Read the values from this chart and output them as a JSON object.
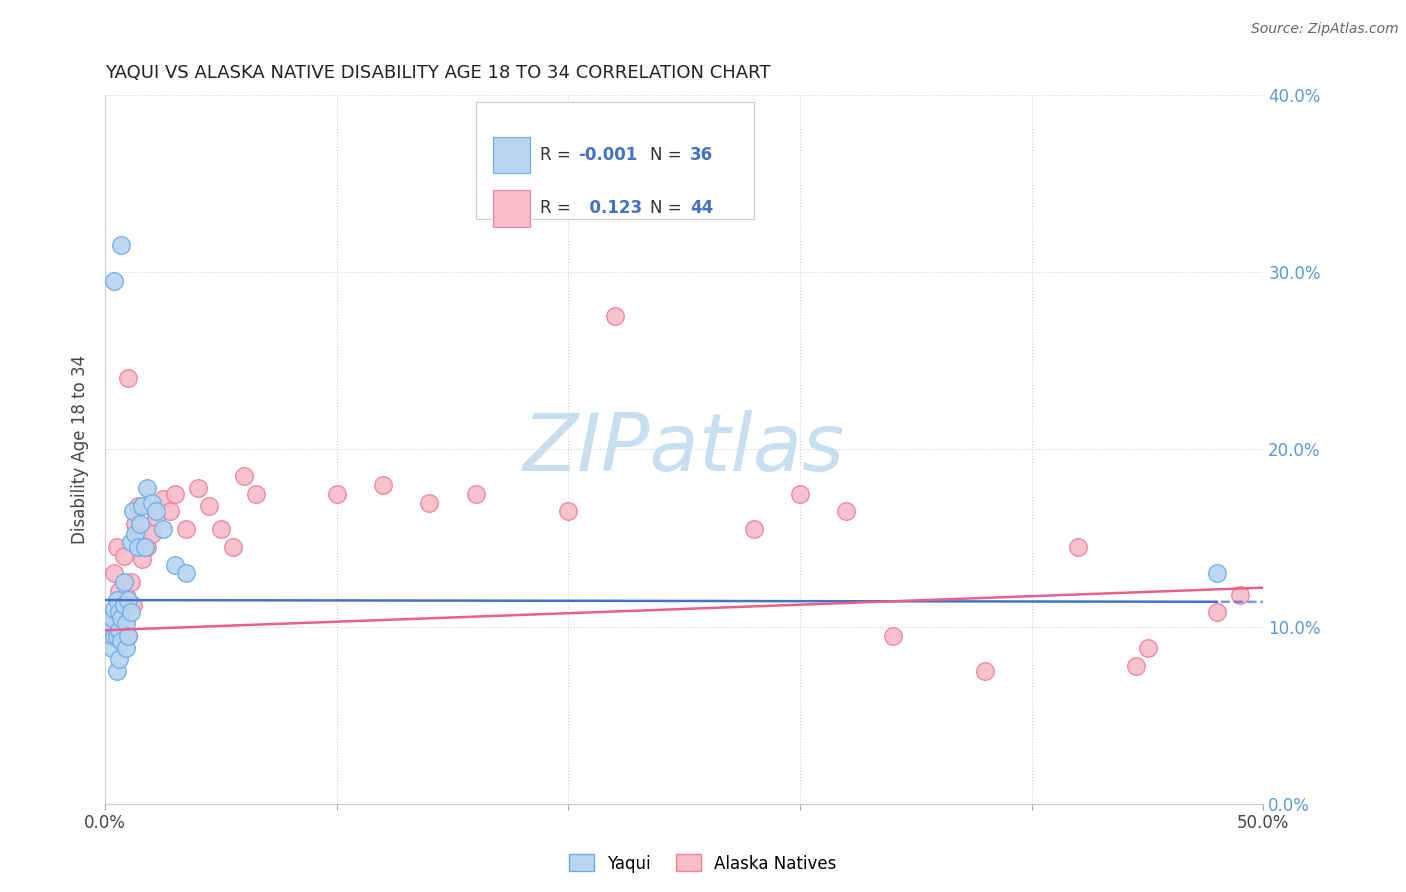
{
  "title": "YAQUI VS ALASKA NATIVE DISABILITY AGE 18 TO 34 CORRELATION CHART",
  "source": "Source: ZipAtlas.com",
  "ylabel": "Disability Age 18 to 34",
  "xlim": [
    0.0,
    0.5
  ],
  "ylim": [
    0.0,
    0.4
  ],
  "xticks": [
    0.0,
    0.1,
    0.2,
    0.3,
    0.4,
    0.5
  ],
  "yticks": [
    0.0,
    0.1,
    0.2,
    0.3,
    0.4
  ],
  "ytick_labels_right": [
    "0.0%",
    "10.0%",
    "20.0%",
    "30.0%",
    "40.0%"
  ],
  "xtick_labels": [
    "0.0%",
    "",
    "",
    "",
    "",
    "50.0%"
  ],
  "color_yaqui_fill": "#b8d4f0",
  "color_yaqui_edge": "#6aaee8",
  "color_alaska_fill": "#f7bccb",
  "color_alaska_edge": "#f080a0",
  "color_line_yaqui": "#4472c4",
  "color_line_alaska": "#e8608a",
  "watermark_color": "#c8dff0",
  "background_color": "#ffffff",
  "grid_color": "#d0d0d0",
  "yaqui_x": [
    0.002,
    0.003,
    0.003,
    0.004,
    0.004,
    0.005,
    0.005,
    0.005,
    0.006,
    0.006,
    0.006,
    0.007,
    0.007,
    0.008,
    0.008,
    0.009,
    0.009,
    0.01,
    0.01,
    0.011,
    0.011,
    0.012,
    0.013,
    0.014,
    0.015,
    0.016,
    0.017,
    0.018,
    0.02,
    0.022,
    0.025,
    0.03,
    0.035,
    0.004,
    0.007,
    0.48
  ],
  "yaqui_y": [
    0.1,
    0.088,
    0.105,
    0.095,
    0.11,
    0.075,
    0.095,
    0.115,
    0.082,
    0.098,
    0.108,
    0.092,
    0.105,
    0.112,
    0.125,
    0.088,
    0.102,
    0.095,
    0.115,
    0.108,
    0.148,
    0.165,
    0.152,
    0.145,
    0.158,
    0.168,
    0.145,
    0.178,
    0.17,
    0.165,
    0.155,
    0.135,
    0.13,
    0.295,
    0.315,
    0.13
  ],
  "alaska_x": [
    0.003,
    0.004,
    0.005,
    0.006,
    0.007,
    0.008,
    0.009,
    0.01,
    0.011,
    0.012,
    0.013,
    0.014,
    0.015,
    0.016,
    0.018,
    0.02,
    0.022,
    0.025,
    0.028,
    0.03,
    0.035,
    0.04,
    0.045,
    0.05,
    0.055,
    0.06,
    0.065,
    0.1,
    0.12,
    0.14,
    0.16,
    0.2,
    0.22,
    0.28,
    0.3,
    0.32,
    0.34,
    0.38,
    0.42,
    0.445,
    0.45,
    0.48,
    0.49,
    0.01
  ],
  "alaska_y": [
    0.1,
    0.13,
    0.145,
    0.12,
    0.11,
    0.14,
    0.118,
    0.095,
    0.125,
    0.112,
    0.158,
    0.168,
    0.148,
    0.138,
    0.145,
    0.152,
    0.162,
    0.172,
    0.165,
    0.175,
    0.155,
    0.178,
    0.168,
    0.155,
    0.145,
    0.185,
    0.175,
    0.175,
    0.18,
    0.17,
    0.175,
    0.165,
    0.275,
    0.155,
    0.175,
    0.165,
    0.095,
    0.075,
    0.145,
    0.078,
    0.088,
    0.108,
    0.118,
    0.24
  ]
}
